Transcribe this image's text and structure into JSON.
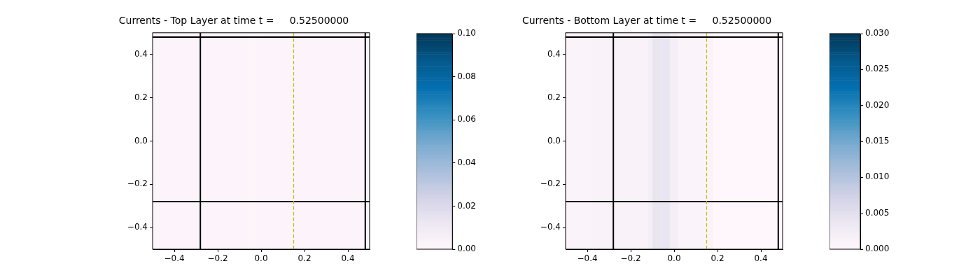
{
  "chart_data": [
    {
      "type": "heatmap",
      "title": "Currents - Top Layer at time t =     0.52500000",
      "x": [
        -0.49,
        -0.47,
        -0.45,
        -0.43,
        -0.41,
        -0.39,
        -0.37,
        -0.35,
        -0.33,
        -0.31,
        -0.29,
        -0.27,
        -0.25,
        -0.23,
        -0.21,
        -0.19,
        -0.17,
        -0.15,
        -0.13,
        -0.11,
        -0.09,
        -0.07,
        -0.05,
        -0.03,
        -0.01,
        0.01,
        0.03,
        0.05,
        0.07,
        0.09,
        0.11,
        0.13,
        0.15,
        0.17,
        0.19,
        0.21,
        0.23,
        0.25,
        0.27,
        0.29,
        0.31,
        0.33,
        0.35,
        0.37,
        0.39,
        0.41,
        0.43,
        0.45,
        0.47,
        0.49
      ],
      "cells": [
        [
          0.002,
          0.002,
          0.002,
          0.002,
          0.002,
          0.002,
          0.002,
          0.002,
          0.002,
          0.002,
          0.002,
          0.002,
          0.002,
          0.002,
          0.002,
          0.002,
          0.002,
          0.002,
          0.002,
          0.002,
          0.002,
          0.002,
          0.0015,
          0.0015,
          0.002,
          0.002,
          0.002,
          0.002,
          0.002,
          0.002,
          0.002,
          0.002,
          0.002,
          0.002,
          0.002,
          0.002,
          0.002,
          0.002,
          0.002,
          0.002,
          0.002,
          0.002,
          0.002,
          0.002,
          0.002,
          0.002,
          0.002,
          0.002,
          0.002,
          0.002
        ]
      ],
      "xlim": [
        -0.5,
        0.5
      ],
      "ylim": [
        -0.5,
        0.5
      ],
      "xticks": [
        {
          "value": -0.4,
          "label": "−0.4"
        },
        {
          "value": -0.2,
          "label": "−0.2"
        },
        {
          "value": 0,
          "label": "0.0"
        },
        {
          "value": 0.2,
          "label": "0.2"
        },
        {
          "value": 0.4,
          "label": "0.4"
        }
      ],
      "yticks": [
        {
          "value": -0.4,
          "label": "−0.4"
        },
        {
          "value": -0.2,
          "label": "−0.2"
        },
        {
          "value": 0,
          "label": "0.0"
        },
        {
          "value": 0.2,
          "label": "0.2"
        },
        {
          "value": 0.4,
          "label": "0.4"
        }
      ],
      "clim": [
        0,
        0.1
      ],
      "cticks": [
        {
          "value": 0,
          "label": "0.00"
        },
        {
          "value": 0.02,
          "label": "0.02"
        },
        {
          "value": 0.04,
          "label": "0.04"
        },
        {
          "value": 0.06,
          "label": "0.06"
        },
        {
          "value": 0.08,
          "label": "0.08"
        },
        {
          "value": 0.1,
          "label": "0.10"
        }
      ],
      "ref_lines": [
        {
          "axis": "x",
          "value": -0.28,
          "color": "#000000"
        },
        {
          "axis": "x",
          "value": 0.48,
          "color": "#000000"
        },
        {
          "axis": "y",
          "value": -0.28,
          "color": "#000000"
        },
        {
          "axis": "y",
          "value": 0.48,
          "color": "#000000"
        },
        {
          "axis": "x",
          "value": 0.15,
          "color": "#bfbf00",
          "line_style": "dashed"
        }
      ]
    },
    {
      "type": "heatmap",
      "title": "Currents - Bottom Layer at time t =     0.52500000",
      "x": [
        -0.49,
        -0.47,
        -0.45,
        -0.43,
        -0.41,
        -0.39,
        -0.37,
        -0.35,
        -0.33,
        -0.31,
        -0.29,
        -0.27,
        -0.25,
        -0.23,
        -0.21,
        -0.19,
        -0.17,
        -0.15,
        -0.13,
        -0.11,
        -0.09,
        -0.07,
        -0.05,
        -0.03,
        -0.01,
        0.01,
        0.03,
        0.05,
        0.07,
        0.09,
        0.11,
        0.13,
        0.15,
        0.17,
        0.19,
        0.21,
        0.23,
        0.25,
        0.27,
        0.29,
        0.31,
        0.33,
        0.35,
        0.37,
        0.39,
        0.41,
        0.43,
        0.45,
        0.47,
        0.49
      ],
      "cells": [
        [
          0.001,
          0.001,
          0.001,
          0.001,
          0.001,
          0.001,
          0.0012,
          0.0012,
          0.0012,
          0.0012,
          0.0012,
          0.0012,
          0.0012,
          0.0012,
          0.0012,
          0.0012,
          0.0012,
          0.0012,
          0.0012,
          0.002,
          0.004,
          0.004,
          0.004,
          0.004,
          0.002,
          0.002,
          0.001,
          0.001,
          0.001,
          0.001,
          0.001,
          0.001,
          0.001,
          0.001,
          0,
          0,
          0,
          0,
          0,
          0,
          0,
          0,
          0,
          0,
          0,
          0,
          0,
          0,
          0,
          0
        ]
      ],
      "xlim": [
        -0.5,
        0.5
      ],
      "ylim": [
        -0.5,
        0.5
      ],
      "xticks": [
        {
          "value": -0.4,
          "label": "−0.4"
        },
        {
          "value": -0.2,
          "label": "−0.2"
        },
        {
          "value": 0,
          "label": "0.0"
        },
        0.2,
        0.4
      ],
      "yticks": [
        {
          "value": -0.4,
          "label": "−0.4"
        },
        {
          "value": -0.2,
          "label": "−0.2"
        },
        {
          "value": 0,
          "label": "0.0"
        },
        0.2,
        0.4
      ],
      "clim": [
        0,
        0.03
      ],
      "cticks": [
        {
          "value": 0,
          "label": "0.000"
        },
        {
          "value": 0.005,
          "label": "0.005"
        },
        {
          "value": 0.01,
          "label": "0.010"
        },
        {
          "value": 0.015,
          "label": "0.015"
        },
        {
          "value": 0.02,
          "label": "0.020"
        },
        {
          "value": 0.025,
          "label": "0.025"
        },
        {
          "value": 0.03,
          "label": "0.030"
        }
      ],
      "ref_lines": [
        {
          "axis": "x",
          "value": -0.28,
          "color": "#000000"
        },
        {
          "axis": "x",
          "value": 0.48,
          "color": "#000000"
        },
        {
          "axis": "y",
          "value": -0.28,
          "color": "#000000"
        },
        {
          "axis": "y",
          "value": 0.48,
          "color": "#000000"
        },
        {
          "axis": "x",
          "value": 0.15,
          "color": "#bfbf00",
          "line_style": "dashed"
        }
      ]
    }
  ]
}
